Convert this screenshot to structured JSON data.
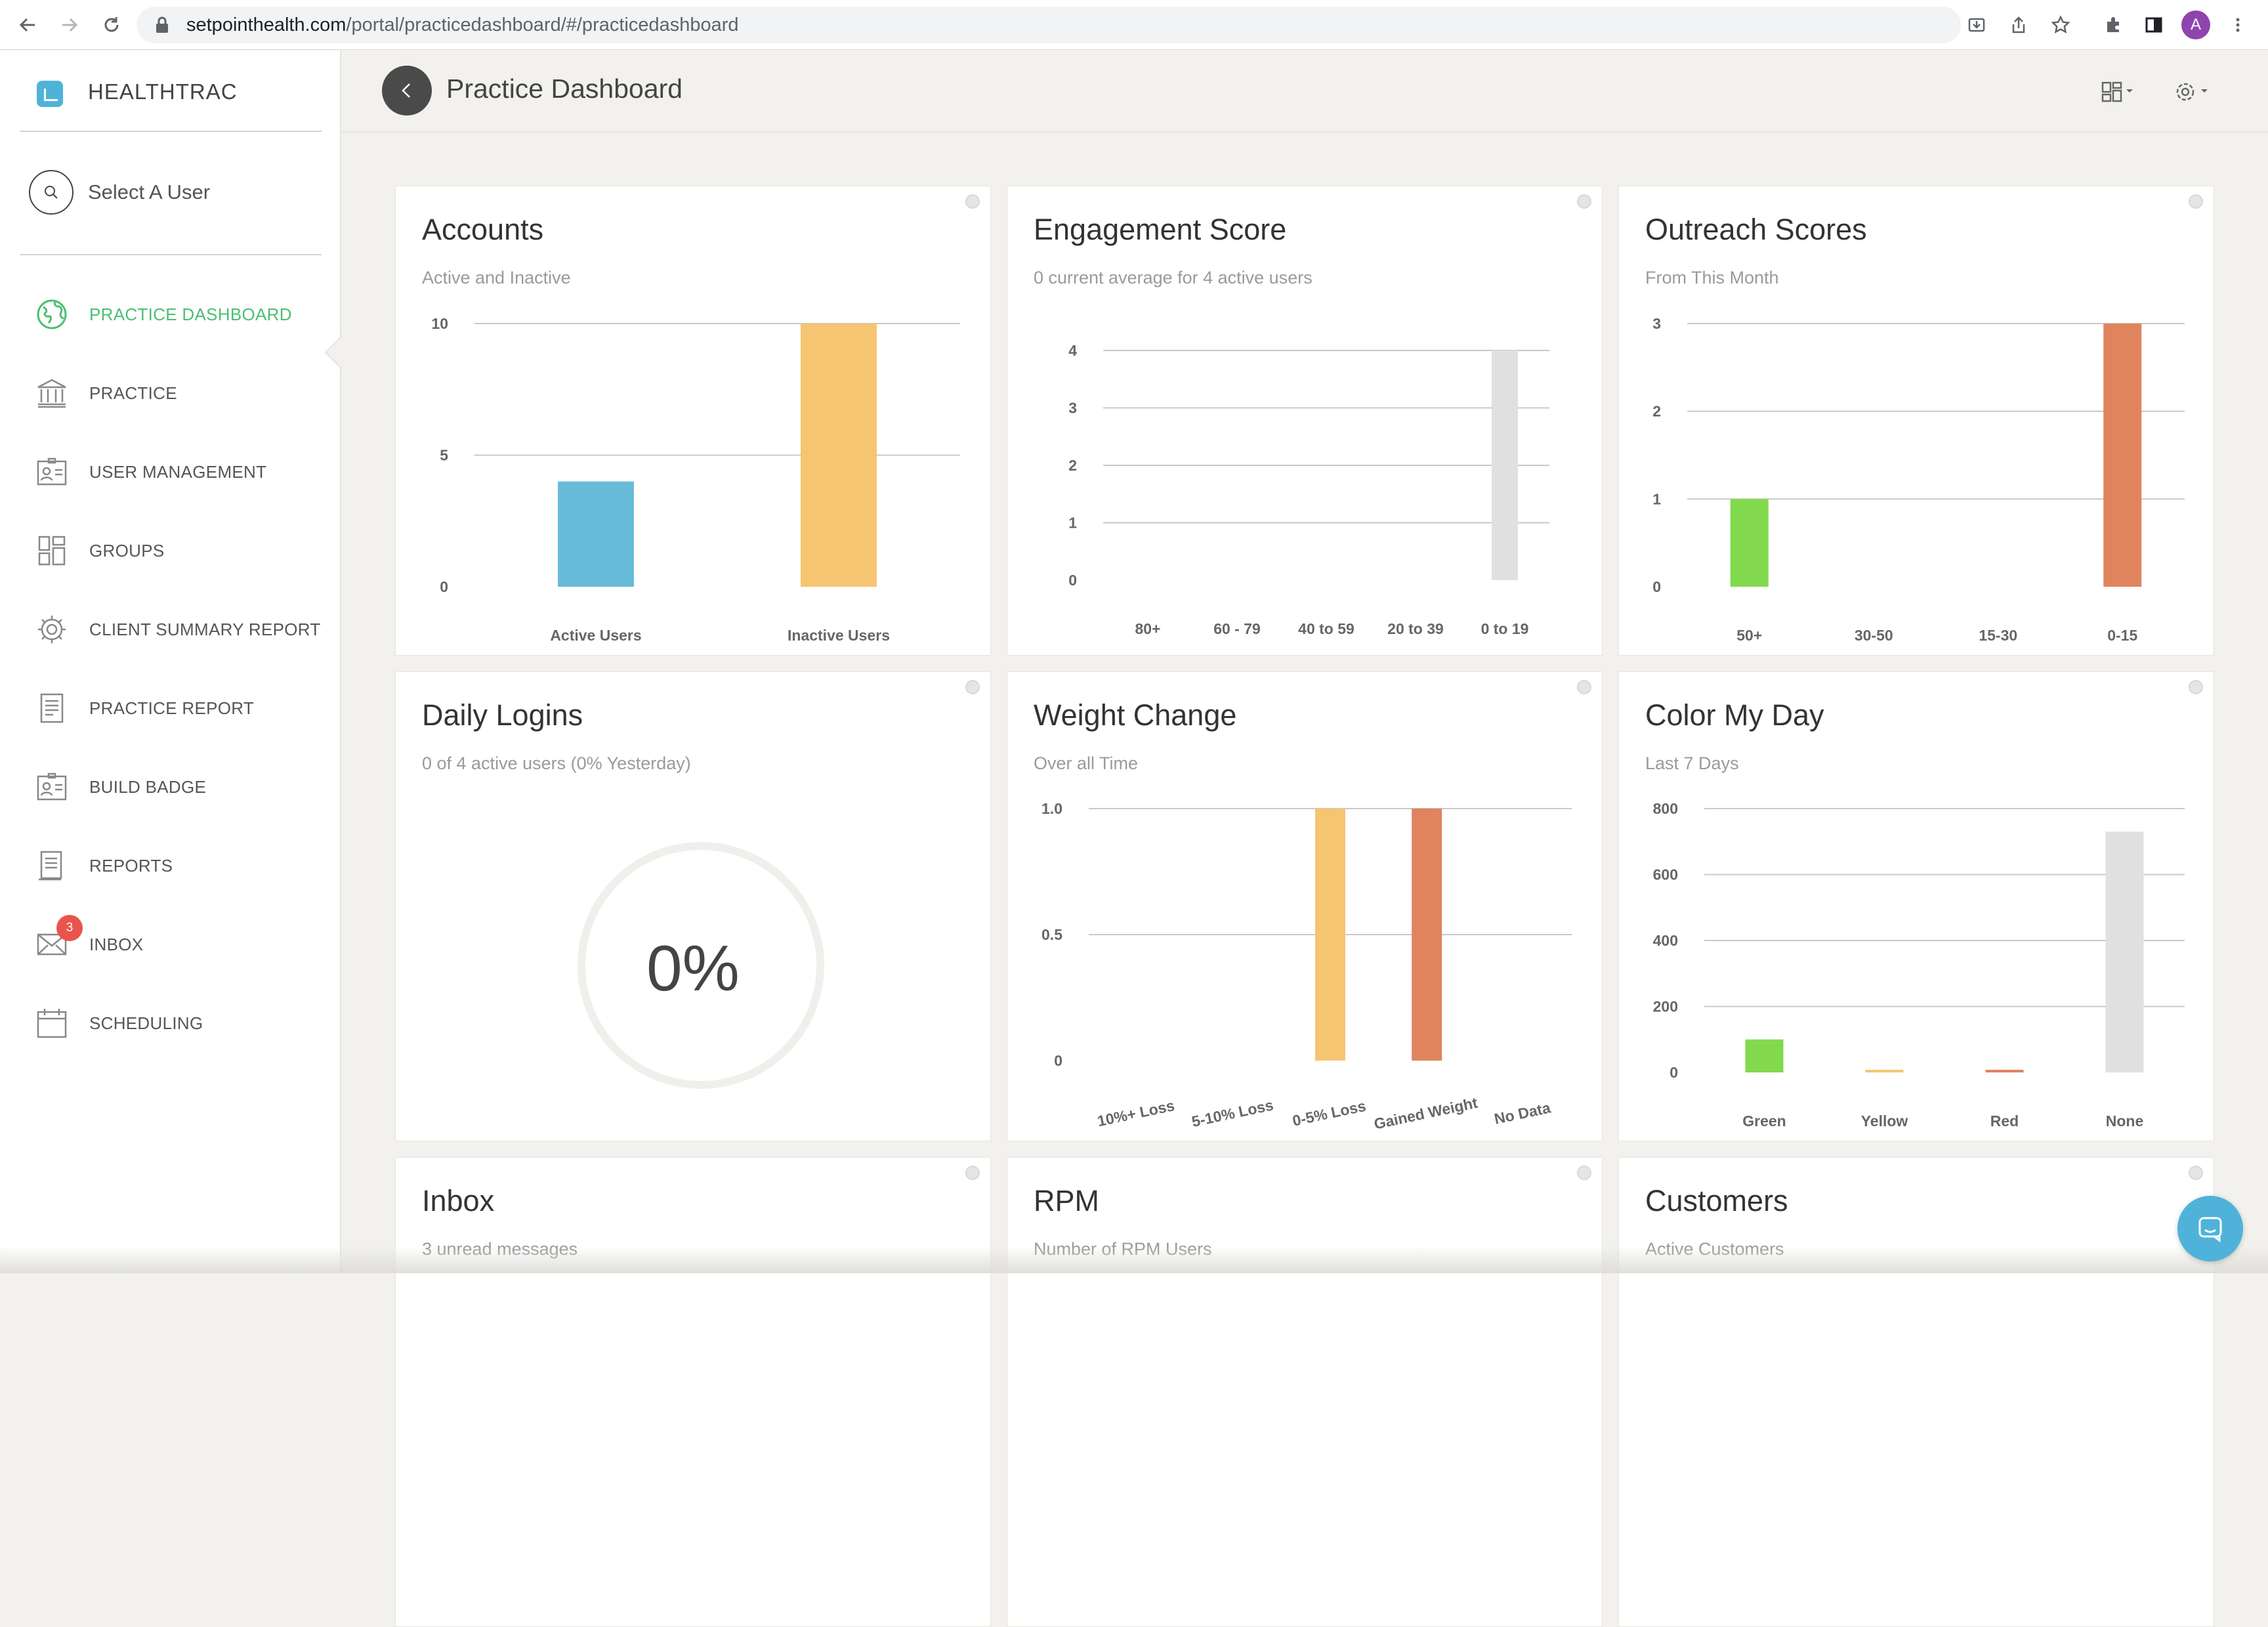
{
  "browser": {
    "url_domain": "setpointhealth.com",
    "url_path": "/portal/practicedashboard/#/practicedashboard",
    "profile_initial": "A",
    "icons": [
      "back-icon",
      "forward-icon",
      "reload-icon",
      "lock-icon",
      "install-icon",
      "share-icon",
      "star-icon",
      "extensions-icon",
      "sidepanel-icon",
      "menu-icon"
    ]
  },
  "sidebar": {
    "brand": "HEALTHTRAC",
    "select_user": "Select A User",
    "items": [
      {
        "label": "PRACTICE DASHBOARD",
        "icon": "globe-icon",
        "active": true
      },
      {
        "label": "PRACTICE",
        "icon": "bank-icon"
      },
      {
        "label": "USER MANAGEMENT",
        "icon": "id-card-icon"
      },
      {
        "label": "GROUPS",
        "icon": "grid-icon"
      },
      {
        "label": "CLIENT SUMMARY REPORT",
        "icon": "gear-icon"
      },
      {
        "label": "PRACTICE REPORT",
        "icon": "document-icon"
      },
      {
        "label": "BUILD BADGE",
        "icon": "badge-icon"
      },
      {
        "label": "REPORTS",
        "icon": "report-icon"
      },
      {
        "label": "INBOX",
        "icon": "mail-icon",
        "badge": "3"
      },
      {
        "label": "SCHEDULING",
        "icon": "calendar-icon"
      }
    ],
    "accent_color": "#4bbf73"
  },
  "header": {
    "title": "Practice Dashboard"
  },
  "cards": {
    "accounts": {
      "title": "Accounts",
      "subtitle": "Active and Inactive"
    },
    "engagement": {
      "title": "Engagement Score",
      "subtitle": "0 current average for 4 active users"
    },
    "outreach": {
      "title": "Outreach Scores",
      "subtitle": "From This Month"
    },
    "logins": {
      "title": "Daily Logins",
      "subtitle": "0 of 4 active users (0% Yesterday)",
      "value": "0%"
    },
    "weight": {
      "title": "Weight Change",
      "subtitle": "Over all Time"
    },
    "colorday": {
      "title": "Color My Day",
      "subtitle": "Last 7 Days"
    },
    "inbox": {
      "title": "Inbox",
      "subtitle": "3 unread messages"
    },
    "rpm": {
      "title": "RPM",
      "subtitle": "Number of RPM Users"
    },
    "customers": {
      "title": "Customers",
      "subtitle": "Active Customers"
    }
  },
  "chart_data": [
    {
      "id": "accounts",
      "type": "bar",
      "categories": [
        "Active Users",
        "Inactive Users"
      ],
      "values": [
        4,
        10
      ],
      "colors": [
        "#67bcd9",
        "#f5c572"
      ],
      "ylim": [
        0,
        10
      ],
      "yticks": [
        "0",
        "5",
        "10"
      ]
    },
    {
      "id": "engagement",
      "type": "bar",
      "categories": [
        "80+",
        "60 - 79",
        "40 to 59",
        "20 to 39",
        "0 to 19"
      ],
      "values": [
        0,
        0,
        0,
        0,
        4
      ],
      "colors": [
        "#e0e0e0",
        "#e0e0e0",
        "#e0e0e0",
        "#e0e0e0",
        "#e0e0e0"
      ],
      "ylim": [
        0,
        4
      ],
      "yticks": [
        "0",
        "1",
        "2",
        "3",
        "4"
      ]
    },
    {
      "id": "outreach",
      "type": "bar",
      "categories": [
        "50+",
        "30-50",
        "15-30",
        "0-15"
      ],
      "values": [
        1,
        0,
        0,
        3
      ],
      "colors": [
        "#82d94e",
        "#f5c572",
        "#f5c572",
        "#e0845e"
      ],
      "ylim": [
        0,
        3
      ],
      "yticks": [
        "0",
        "1",
        "2",
        "3"
      ]
    },
    {
      "id": "weight",
      "type": "bar",
      "categories": [
        "10%+ Loss",
        "5-10% Loss",
        "0-5% Loss",
        "Gained Weight",
        "No Data"
      ],
      "values": [
        0,
        0,
        1,
        1,
        0
      ],
      "colors": [
        "#e0e0e0",
        "#e0e0e0",
        "#f5c572",
        "#e0845e",
        "#e0e0e0"
      ],
      "ylim": [
        0,
        1
      ],
      "yticks": [
        "0",
        "0.5",
        "1.0"
      ]
    },
    {
      "id": "colorday",
      "type": "bar",
      "categories": [
        "Green",
        "Yellow",
        "Red",
        "None"
      ],
      "values": [
        100,
        3,
        8,
        730
      ],
      "colors": [
        "#82d94e",
        "#f5c572",
        "#e0845e",
        "#e0e0e0"
      ],
      "ylim": [
        0,
        800
      ],
      "yticks": [
        "0",
        "200",
        "400",
        "600",
        "800"
      ]
    }
  ]
}
